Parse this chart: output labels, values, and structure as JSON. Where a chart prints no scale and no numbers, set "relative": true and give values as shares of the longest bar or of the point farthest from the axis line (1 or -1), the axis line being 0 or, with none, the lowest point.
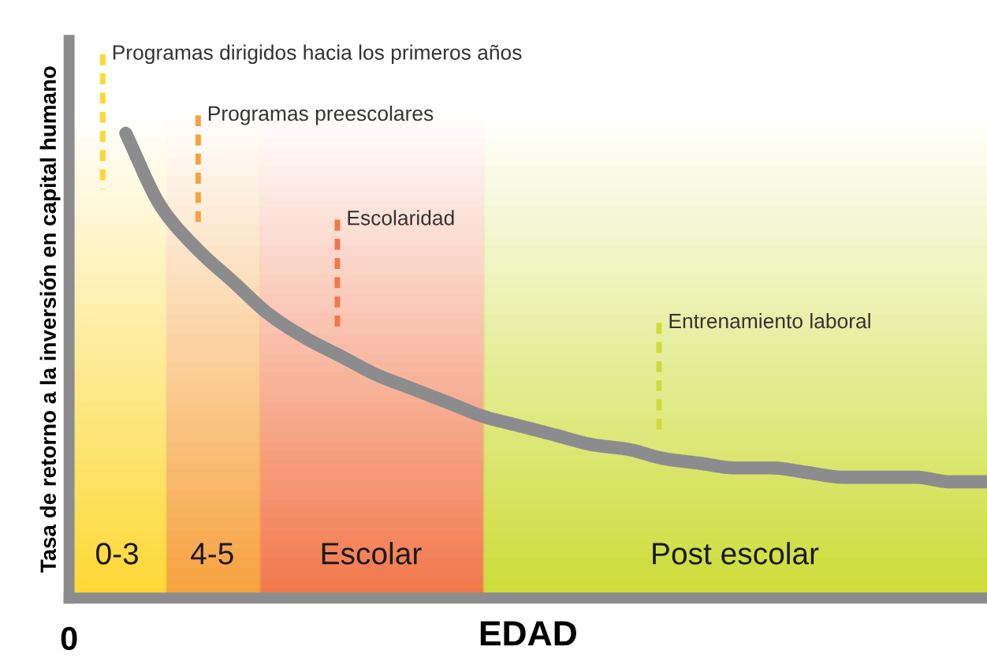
{
  "chart_data": {
    "type": "line",
    "relative": true,
    "ylabel": "Tasa de retorno a la inversión en capital humano",
    "xlabel": "EDAD",
    "categories": [
      null,
      null,
      null,
      null,
      null,
      null,
      null,
      null,
      null,
      null,
      null,
      null,
      null,
      null,
      null,
      null,
      null,
      null,
      null,
      null,
      null,
      null,
      null,
      null,
      null
    ],
    "series": [
      {
        "color": "#8c8c8f",
        "values": [
          1.0,
          0.84,
          0.75,
          0.68,
          0.61,
          0.56,
          0.52,
          0.48,
          0.45,
          0.42,
          0.39,
          0.37,
          0.35,
          0.33,
          0.32,
          0.3,
          0.29,
          0.28,
          0.28,
          0.27,
          0.26,
          0.26,
          0.26,
          0.25,
          0.25
        ]
      }
    ],
    "annotations": [
      "Programas dirigidos hacia los primeros años",
      "Programas preescolares",
      "Escolaridad",
      "Entrenamiento laboral",
      "0-3",
      "4-5",
      "Escolar",
      "Post escolar",
      "0"
    ],
    "legend": false,
    "marker": "none",
    "line_style": "solid"
  }
}
